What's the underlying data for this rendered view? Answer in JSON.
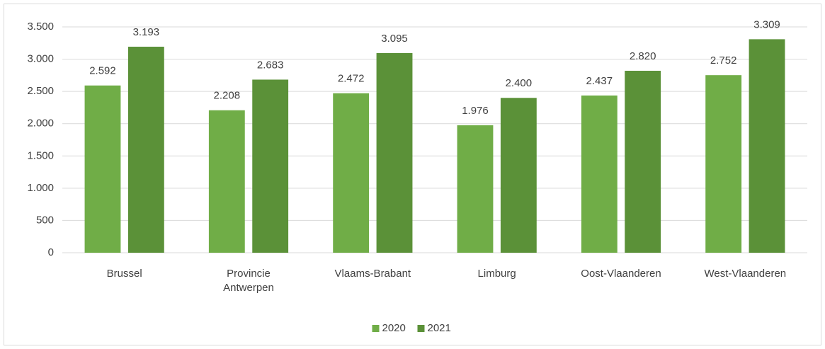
{
  "chart_data": {
    "type": "bar",
    "categories": [
      "Brussel",
      "Provincie Antwerpen",
      "Vlaams-Brabant",
      "Limburg",
      "Oost-Vlaanderen",
      "West-Vlaanderen"
    ],
    "series": [
      {
        "name": "2020",
        "color": "#70ad47",
        "values": [
          2592,
          2208,
          2472,
          1976,
          2437,
          2752
        ],
        "value_labels": [
          "2.592",
          "2.208",
          "2.472",
          "1.976",
          "2.437",
          "2.752"
        ]
      },
      {
        "name": "2021",
        "color": "#5b9138",
        "values": [
          3193,
          2683,
          3095,
          2400,
          2820,
          3309
        ],
        "value_labels": [
          "3.193",
          "2.683",
          "3.095",
          "2.400",
          "2.820",
          "3.309"
        ]
      }
    ],
    "ylim": [
      0,
      3500
    ],
    "yticks": [
      0,
      500,
      {
        "value": 1000,
        "label": "1.000"
      },
      {
        "value": 1500,
        "label": "1.500"
      },
      {
        "value": 2000,
        "label": "2.000"
      },
      {
        "value": 2500,
        "label": "2.500"
      },
      {
        "value": 3000,
        "label": "3.000"
      },
      {
        "value": 3500,
        "label": "3.500"
      }
    ],
    "grid": true,
    "legend": "bottom"
  }
}
